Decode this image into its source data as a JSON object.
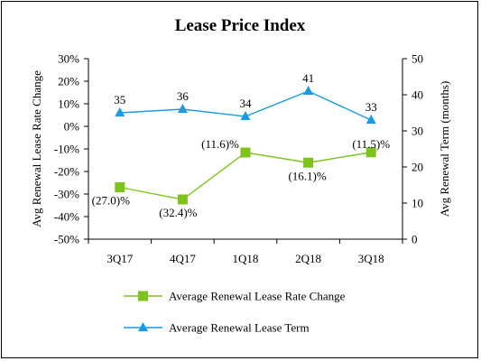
{
  "chart_data": {
    "type": "line",
    "title": "Lease Price Index",
    "categories": [
      "3Q17",
      "4Q17",
      "1Q18",
      "2Q18",
      "3Q18"
    ],
    "left_axis": {
      "label": "Avg Renewal Lease Rate Change",
      "min": -50,
      "max": 30,
      "step": 10,
      "unit": "%",
      "tick_labels": [
        "-50%",
        "-40%",
        "-30%",
        "-20%",
        "-10%",
        "0%",
        "10%",
        "20%",
        "30%"
      ]
    },
    "right_axis": {
      "label": "Avg Renewal Term (months)",
      "min": 0,
      "max": 50,
      "step": 10,
      "tick_labels": [
        "0",
        "10",
        "20",
        "30",
        "40",
        "50"
      ]
    },
    "series": [
      {
        "name": "Average Renewal Lease Rate Change",
        "axis": "left",
        "color": "#7dc31b",
        "marker": "square",
        "values": [
          -27.0,
          -32.4,
          -11.6,
          -16.1,
          -11.5
        ],
        "labels": [
          "(27.0)%",
          "(32.4)%",
          "(11.6)%",
          "(16.1)%",
          "(11.5)%"
        ]
      },
      {
        "name": "Average Renewal Lease Term",
        "axis": "right",
        "color": "#1a9be6",
        "marker": "triangle",
        "values": [
          35,
          36,
          34,
          41,
          33
        ],
        "labels": [
          "35",
          "36",
          "34",
          "41",
          "33"
        ]
      }
    ],
    "grid": false,
    "legend_position": "bottom"
  }
}
